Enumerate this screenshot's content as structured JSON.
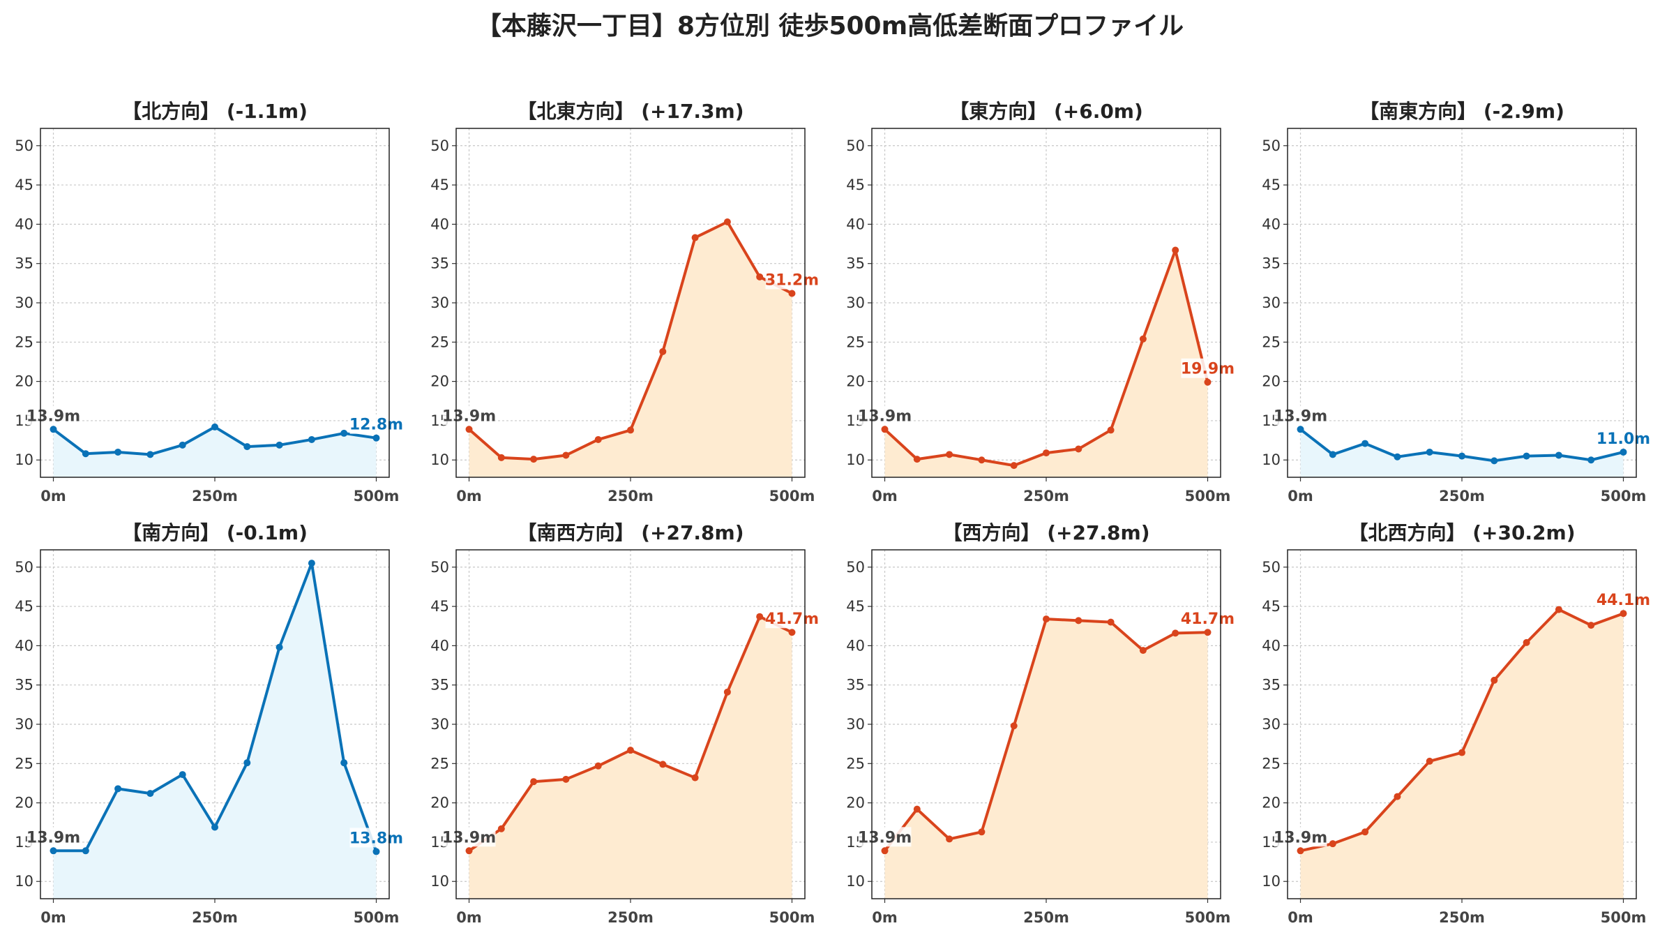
{
  "suptitle": "【本藤沢一丁目】8方位別 徒歩500m高低差断面プロファイル",
  "colors": {
    "down": "#0A72B7",
    "up": "#D9441C",
    "down_fill": "#E8F6FC",
    "up_fill": "#FEEBD1",
    "start_label": "#444444"
  },
  "chart_data": [
    {
      "type": "area",
      "title": "【北方向】 (-1.1m)",
      "trend": "down",
      "x": [
        0,
        50,
        100,
        150,
        200,
        250,
        300,
        350,
        400,
        450,
        500
      ],
      "series": [
        {
          "values": [
            13.9,
            10.8,
            11.0,
            10.7,
            11.9,
            14.2,
            11.7,
            11.9,
            12.6,
            13.4,
            12.8
          ]
        }
      ],
      "start_label": "13.9m",
      "end_label": "12.8m",
      "xticks": [
        "0m",
        "250m",
        "500m"
      ],
      "yticks": [
        "10",
        "15",
        "20",
        "25",
        "30",
        "35",
        "40",
        "45",
        "50"
      ],
      "xlim": [
        -20,
        520
      ],
      "ylim": [
        7.8,
        52.2
      ],
      "grid": true
    },
    {
      "type": "area",
      "title": "【北東方向】 (+17.3m)",
      "trend": "up",
      "x": [
        0,
        50,
        100,
        150,
        200,
        250,
        300,
        350,
        400,
        450,
        500
      ],
      "series": [
        {
          "values": [
            13.9,
            10.3,
            10.1,
            10.6,
            12.6,
            13.8,
            23.8,
            38.3,
            40.3,
            33.3,
            31.2
          ]
        }
      ],
      "start_label": "13.9m",
      "end_label": "31.2m",
      "xticks": [
        "0m",
        "250m",
        "500m"
      ],
      "yticks": [
        "10",
        "15",
        "20",
        "25",
        "30",
        "35",
        "40",
        "45",
        "50"
      ],
      "xlim": [
        -20,
        520
      ],
      "ylim": [
        7.8,
        52.2
      ],
      "grid": true
    },
    {
      "type": "area",
      "title": "【東方向】 (+6.0m)",
      "trend": "up",
      "x": [
        0,
        50,
        100,
        150,
        200,
        250,
        300,
        350,
        400,
        450,
        500
      ],
      "series": [
        {
          "values": [
            13.9,
            10.1,
            10.7,
            10.0,
            9.3,
            10.9,
            11.4,
            13.8,
            25.4,
            36.7,
            19.9
          ]
        }
      ],
      "start_label": "13.9m",
      "end_label": "19.9m",
      "xticks": [
        "0m",
        "250m",
        "500m"
      ],
      "yticks": [
        "10",
        "15",
        "20",
        "25",
        "30",
        "35",
        "40",
        "45",
        "50"
      ],
      "xlim": [
        -20,
        520
      ],
      "ylim": [
        7.8,
        52.2
      ],
      "grid": true
    },
    {
      "type": "area",
      "title": "【南東方向】 (-2.9m)",
      "trend": "down",
      "x": [
        0,
        50,
        100,
        150,
        200,
        250,
        300,
        350,
        400,
        450,
        500
      ],
      "series": [
        {
          "values": [
            13.9,
            10.7,
            12.1,
            10.4,
            11.0,
            10.5,
            9.9,
            10.5,
            10.6,
            10.0,
            11.0
          ]
        }
      ],
      "start_label": "13.9m",
      "end_label": "11.0m",
      "xticks": [
        "0m",
        "250m",
        "500m"
      ],
      "yticks": [
        "10",
        "15",
        "20",
        "25",
        "30",
        "35",
        "40",
        "45",
        "50"
      ],
      "xlim": [
        -20,
        520
      ],
      "ylim": [
        7.8,
        52.2
      ],
      "grid": true
    },
    {
      "type": "area",
      "title": "【南方向】 (-0.1m)",
      "trend": "down",
      "x": [
        0,
        50,
        100,
        150,
        200,
        250,
        300,
        350,
        400,
        450,
        500
      ],
      "series": [
        {
          "values": [
            13.9,
            13.9,
            21.8,
            21.2,
            23.6,
            16.9,
            25.1,
            39.8,
            50.5,
            25.1,
            13.8
          ]
        }
      ],
      "start_label": "13.9m",
      "end_label": "13.8m",
      "xticks": [
        "0m",
        "250m",
        "500m"
      ],
      "yticks": [
        "10",
        "15",
        "20",
        "25",
        "30",
        "35",
        "40",
        "45",
        "50"
      ],
      "xlim": [
        -20,
        520
      ],
      "ylim": [
        7.8,
        52.2
      ],
      "grid": true
    },
    {
      "type": "area",
      "title": "【南西方向】 (+27.8m)",
      "trend": "up",
      "x": [
        0,
        50,
        100,
        150,
        200,
        250,
        300,
        350,
        400,
        450,
        500
      ],
      "series": [
        {
          "values": [
            13.9,
            16.7,
            22.7,
            23.0,
            24.7,
            26.7,
            24.9,
            23.2,
            34.1,
            43.7,
            41.7
          ]
        }
      ],
      "start_label": "13.9m",
      "end_label": "41.7m",
      "xticks": [
        "0m",
        "250m",
        "500m"
      ],
      "yticks": [
        "10",
        "15",
        "20",
        "25",
        "30",
        "35",
        "40",
        "45",
        "50"
      ],
      "xlim": [
        -20,
        520
      ],
      "ylim": [
        7.8,
        52.2
      ],
      "grid": true
    },
    {
      "type": "area",
      "title": "【西方向】 (+27.8m)",
      "trend": "up",
      "x": [
        0,
        50,
        100,
        150,
        200,
        250,
        300,
        350,
        400,
        450,
        500
      ],
      "series": [
        {
          "values": [
            13.9,
            19.2,
            15.4,
            16.3,
            29.8,
            43.4,
            43.2,
            43.0,
            39.4,
            41.6,
            41.7
          ]
        }
      ],
      "start_label": "13.9m",
      "end_label": "41.7m",
      "xticks": [
        "0m",
        "250m",
        "500m"
      ],
      "yticks": [
        "10",
        "15",
        "20",
        "25",
        "30",
        "35",
        "40",
        "45",
        "50"
      ],
      "xlim": [
        -20,
        520
      ],
      "ylim": [
        7.8,
        52.2
      ],
      "grid": true
    },
    {
      "type": "area",
      "title": "【北西方向】 (+30.2m)",
      "trend": "up",
      "x": [
        0,
        50,
        100,
        150,
        200,
        250,
        300,
        350,
        400,
        450,
        500
      ],
      "series": [
        {
          "values": [
            13.9,
            14.8,
            16.3,
            20.8,
            25.3,
            26.4,
            35.6,
            40.4,
            44.6,
            42.6,
            44.1
          ]
        }
      ],
      "start_label": "13.9m",
      "end_label": "44.1m",
      "xticks": [
        "0m",
        "250m",
        "500m"
      ],
      "yticks": [
        "10",
        "15",
        "20",
        "25",
        "30",
        "35",
        "40",
        "45",
        "50"
      ],
      "xlim": [
        -20,
        520
      ],
      "ylim": [
        7.8,
        52.2
      ],
      "grid": true
    }
  ]
}
